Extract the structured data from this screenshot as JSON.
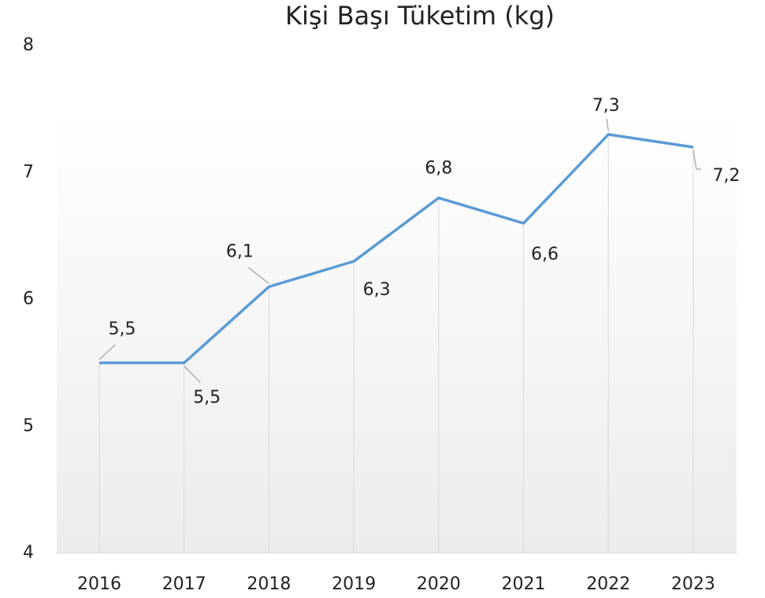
{
  "chart_data": {
    "type": "line",
    "title": "Kişi Başı Tüketim  (kg)",
    "categories": [
      "2016",
      "2017",
      "2018",
      "2019",
      "2020",
      "2021",
      "2022",
      "2023"
    ],
    "series": [
      {
        "name": "Kişi Başı Tüketim",
        "color": "#5b9bd5",
        "values": [
          5.5,
          5.5,
          6.1,
          6.3,
          6.8,
          6.6,
          7.3,
          7.2
        ],
        "value_labels": [
          "5,5",
          "5,5",
          "6,1",
          "6,3",
          "6,8",
          "6,6",
          "7,3",
          "7,2"
        ]
      }
    ],
    "ylim": [
      4,
      8
    ],
    "yticks": [
      4,
      5,
      6,
      7,
      8
    ],
    "drop_lines": true
  }
}
